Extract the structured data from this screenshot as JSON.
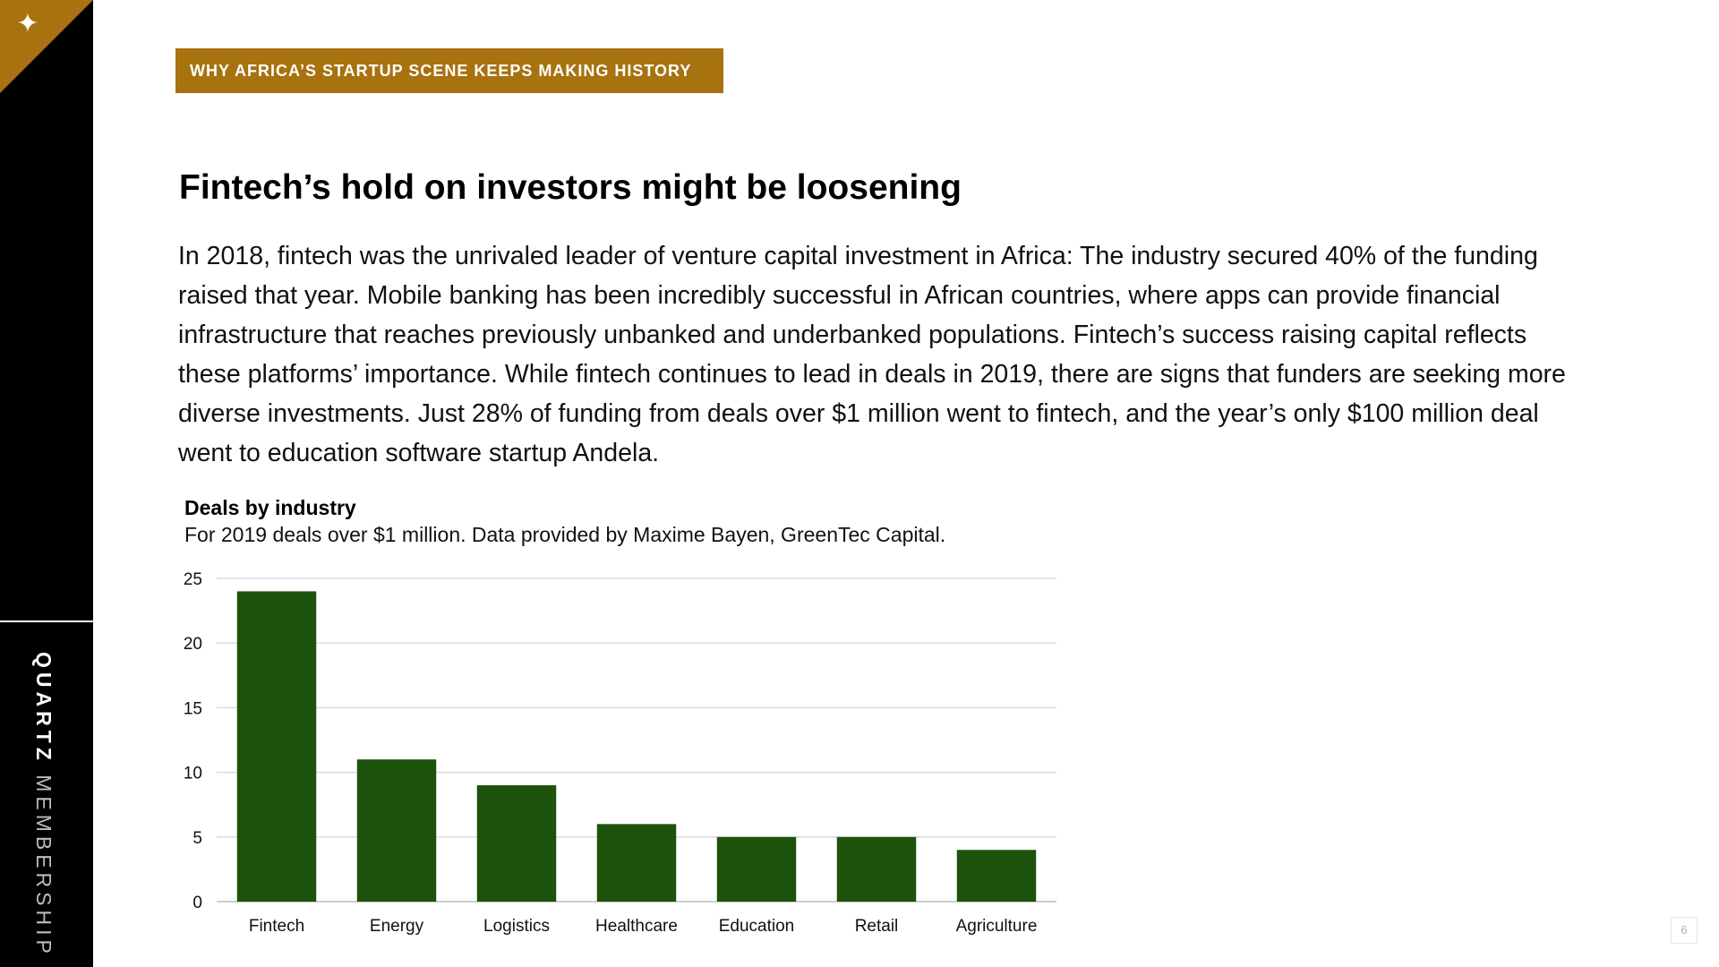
{
  "sidebar": {
    "icon": "sparkle-icon",
    "brand_bold": "QUARTZ",
    "brand_light": "MEMBERSHIP",
    "accent_color": "#a8720f"
  },
  "kicker": "WHY AFRICA’S STARTUP SCENE KEEPS MAKING HISTORY",
  "headline": "Fintech’s hold on investors might be loosening",
  "body": "In 2018, fintech was the unrivaled leader of venture capital investment in Africa: The industry secured 40% of the funding raised that year. Mobile banking has been incredibly successful in African countries, where apps can provide financial infrastructure that reaches previously unbanked and underbanked populations. Fintech’s success raising capital reflects these platforms’ importance. While fintech continues to lead in deals in 2019, there are signs that funders are seeking more diverse investments. Just 28% of funding from deals over $1 million went to fintech, and the year’s only $100 million deal went to education software startup Andela.",
  "chart_data": {
    "type": "bar",
    "title": "Deals by industry",
    "subtitle": "For 2019 deals over $1 million. Data provided by Maxime Bayen, GreenTec Capital.",
    "categories": [
      "Fintech",
      "Energy",
      "Logistics",
      "Healthcare",
      "Education",
      "Retail",
      "Agriculture"
    ],
    "values": [
      24,
      11,
      9,
      6,
      5,
      5,
      4
    ],
    "ylim": [
      0,
      25
    ],
    "yticks": [
      0,
      5,
      10,
      15,
      20,
      25
    ],
    "grid": true,
    "bar_color": "#1d520c"
  },
  "page_number": "6"
}
